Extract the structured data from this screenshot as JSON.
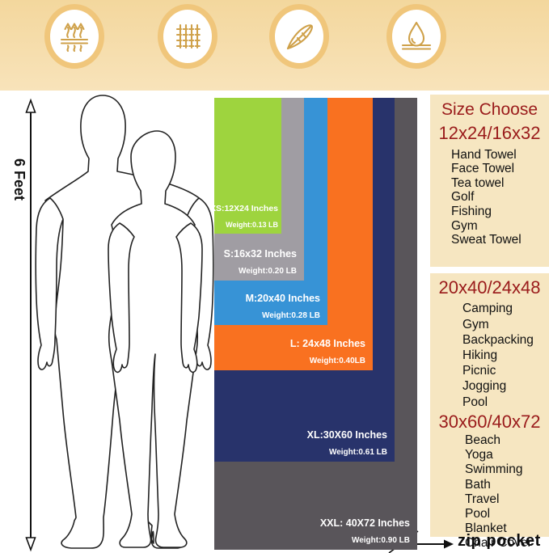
{
  "features": [
    {
      "label": "Fast Drying",
      "icon": "heat-waves-icon"
    },
    {
      "label": "Soft Touch",
      "icon": "fabric-mesh-icon"
    },
    {
      "label": "Lightweight",
      "icon": "feather-icon"
    },
    {
      "label": "Absorbent",
      "icon": "water-drop-icon"
    }
  ],
  "height_scale_label": "6 Feet",
  "towels": [
    {
      "size_code": "XS",
      "label": "XS:12X24 Inches",
      "weight": "Weight:0.13 LB",
      "color": "#9ed43e"
    },
    {
      "size_code": "S",
      "label": "S:16x32 Inches",
      "weight": "Weight:0.20 LB",
      "color": "#a09da3"
    },
    {
      "size_code": "M",
      "label": "M:20x40 Inches",
      "weight": "Weight:0.28 LB",
      "color": "#3793d6"
    },
    {
      "size_code": "L",
      "label": "L: 24x48 Inches",
      "weight": "Weight:0.40LB",
      "color": "#f97120"
    },
    {
      "size_code": "XL",
      "label": "XL:30X60 Inches",
      "weight": "Weight:0.61 LB",
      "color": "#28336b"
    },
    {
      "size_code": "XXL",
      "label": "XXL: 40X72 Inches",
      "weight": "Weight:0.90 LB",
      "color": "#59555a"
    }
  ],
  "size_panel": {
    "title": "Size Choose",
    "groups": [
      {
        "heading": "12x24/16x32",
        "items": [
          "Hand Towel",
          "Face Towel",
          "Tea towel",
          "Golf",
          "Fishing",
          "Gym",
          "Sweat Towel"
        ]
      },
      {
        "heading": "20x40/24x48",
        "items": [
          "Camping",
          "Gym",
          "Backpacking",
          "Hiking",
          "Picnic",
          "Jogging",
          "Pool"
        ]
      },
      {
        "heading": "30x60/40x72",
        "items": [
          "Beach",
          "Yoga",
          "Swimming",
          "Bath",
          "Travel",
          "Pool",
          "Blanket",
          "Chair Cover"
        ]
      }
    ]
  },
  "zip_pocket_label": "zip pocket",
  "palette": {
    "band_top": "#f3d79d",
    "band_bottom": "#f8e3ba",
    "circle_ring": "#f0c67b",
    "icon_gold": "#cfa14a",
    "panel_bg": "#f6e6c1",
    "heading_red": "#9a1b1b"
  }
}
